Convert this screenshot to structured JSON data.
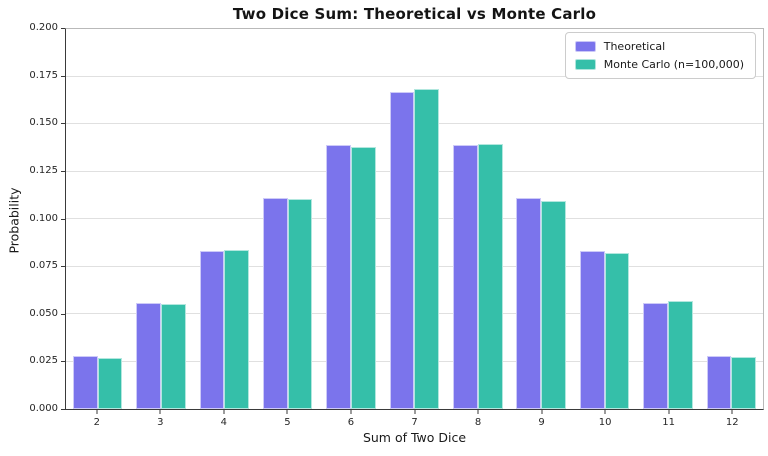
{
  "chart_data": {
    "type": "bar",
    "title": "Two Dice Sum: Theoretical vs Monte Carlo",
    "xlabel": "Sum of Two Dice",
    "ylabel": "Probability",
    "categories": [
      "2",
      "3",
      "4",
      "5",
      "6",
      "7",
      "8",
      "9",
      "10",
      "11",
      "12"
    ],
    "series": [
      {
        "name": "Theoretical",
        "color": "#7b74ec",
        "values": [
          0.02778,
          0.05556,
          0.08333,
          0.11111,
          0.13889,
          0.16667,
          0.13889,
          0.11111,
          0.08333,
          0.05556,
          0.02778
        ]
      },
      {
        "name": "Monte Carlo (n=100,000)",
        "color": "#35bfa9",
        "values": [
          0.0271,
          0.0552,
          0.0836,
          0.1107,
          0.1381,
          0.1682,
          0.1395,
          0.1097,
          0.0819,
          0.057,
          0.0272
        ]
      }
    ],
    "ylim": [
      0,
      0.2
    ],
    "yticks": [
      0,
      0.025,
      0.05,
      0.075,
      0.1,
      0.125,
      0.15,
      0.175,
      0.2
    ],
    "ytick_labels": [
      "0.000",
      "0.025",
      "0.050",
      "0.075",
      "0.100",
      "0.125",
      "0.150",
      "0.175",
      "0.200"
    ],
    "grid": "horizontal",
    "legend_position": "upper right",
    "axis_color": "#3a3a3a",
    "grid_color": "#e0e0e0"
  }
}
